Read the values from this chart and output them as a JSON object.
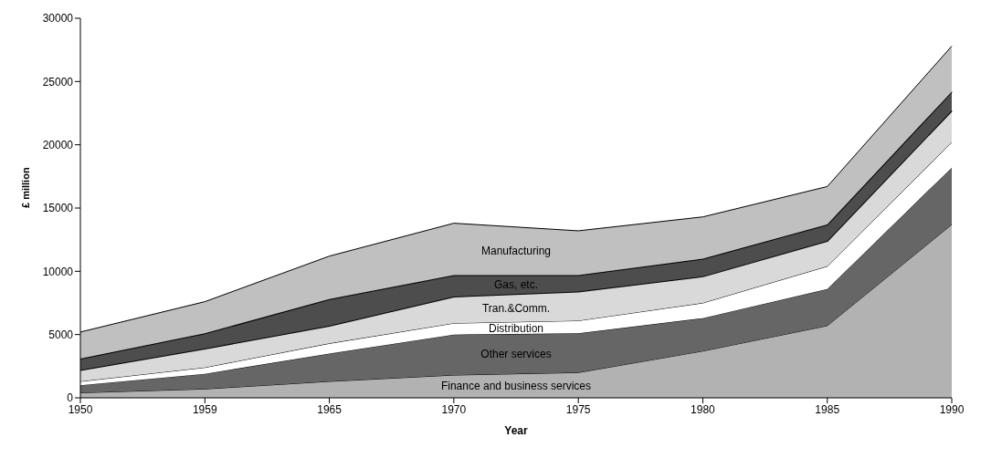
{
  "chart_data": {
    "type": "area",
    "stacked": true,
    "xlabel": "Year",
    "ylabel": "£ million",
    "categories": [
      "1950",
      "1959",
      "1965",
      "1970",
      "1975",
      "1980",
      "1985",
      "1990"
    ],
    "series": [
      {
        "name": "Finance and business services",
        "color": "#b2b2b2",
        "values": [
          400,
          700,
          1300,
          1800,
          2000,
          3700,
          5700,
          13700
        ]
      },
      {
        "name": "Other services",
        "color": "#666666",
        "values": [
          600,
          1200,
          2200,
          3200,
          3100,
          2600,
          2900,
          4500
        ]
      },
      {
        "name": "Distribution",
        "color": "#ffffff",
        "values": [
          300,
          500,
          800,
          900,
          1000,
          1200,
          1800,
          2000
        ]
      },
      {
        "name": "Tran.&Comm.",
        "color": "#d9d9d9",
        "values": [
          900,
          1500,
          1400,
          2100,
          2300,
          2100,
          2000,
          2500
        ]
      },
      {
        "name": "Gas, etc.",
        "color": "#4d4d4d",
        "values": [
          900,
          1200,
          2100,
          1700,
          1300,
          1400,
          1300,
          1500
        ]
      },
      {
        "name": "Manufacturing",
        "color": "#c0c0c0",
        "values": [
          2100,
          2500,
          3400,
          4100,
          3500,
          3300,
          3000,
          3600
        ]
      }
    ],
    "ylim": [
      0,
      30000
    ],
    "yticks": [
      0,
      5000,
      10000,
      15000,
      20000,
      25000,
      30000
    ],
    "grid": false,
    "legend": false
  }
}
